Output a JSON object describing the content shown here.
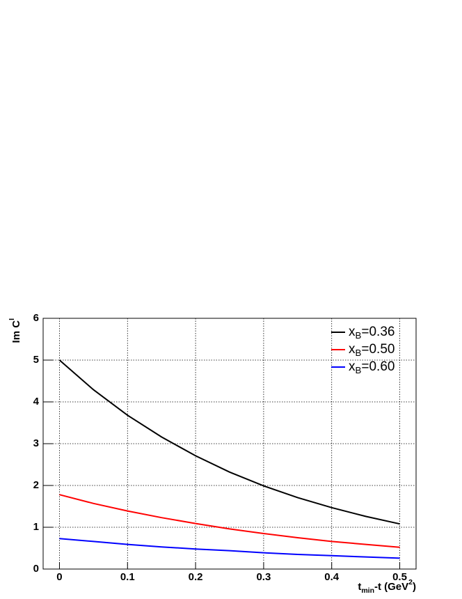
{
  "chart_data": {
    "type": "line",
    "xlabel": "t_{min}-t (GeV^{2})",
    "ylabel": "Im C^{I}",
    "x": [
      0,
      0.05,
      0.1,
      0.15,
      0.2,
      0.25,
      0.3,
      0.35,
      0.4,
      0.45,
      0.5
    ],
    "series": [
      {
        "name": "x_{B}=0.36",
        "color": "#000000",
        "values": [
          5.0,
          4.29,
          3.68,
          3.16,
          2.71,
          2.32,
          1.99,
          1.71,
          1.47,
          1.26,
          1.08
        ]
      },
      {
        "name": "x_{B}=0.50",
        "color": "#ff0000",
        "values": [
          1.78,
          1.57,
          1.39,
          1.23,
          1.09,
          0.96,
          0.85,
          0.75,
          0.66,
          0.59,
          0.52
        ]
      },
      {
        "name": "x_{B}=0.60",
        "color": "#0000ff",
        "values": [
          0.73,
          0.66,
          0.59,
          0.53,
          0.48,
          0.44,
          0.39,
          0.35,
          0.32,
          0.29,
          0.26
        ]
      }
    ],
    "xlim": [
      -0.024,
      0.524
    ],
    "ylim": [
      0,
      6
    ],
    "xticks": [
      0,
      0.1,
      0.2,
      0.3,
      0.4,
      0.5
    ],
    "yticks": [
      0,
      1,
      2,
      3,
      4,
      5,
      6
    ],
    "grid": true,
    "legend": "top-right"
  }
}
